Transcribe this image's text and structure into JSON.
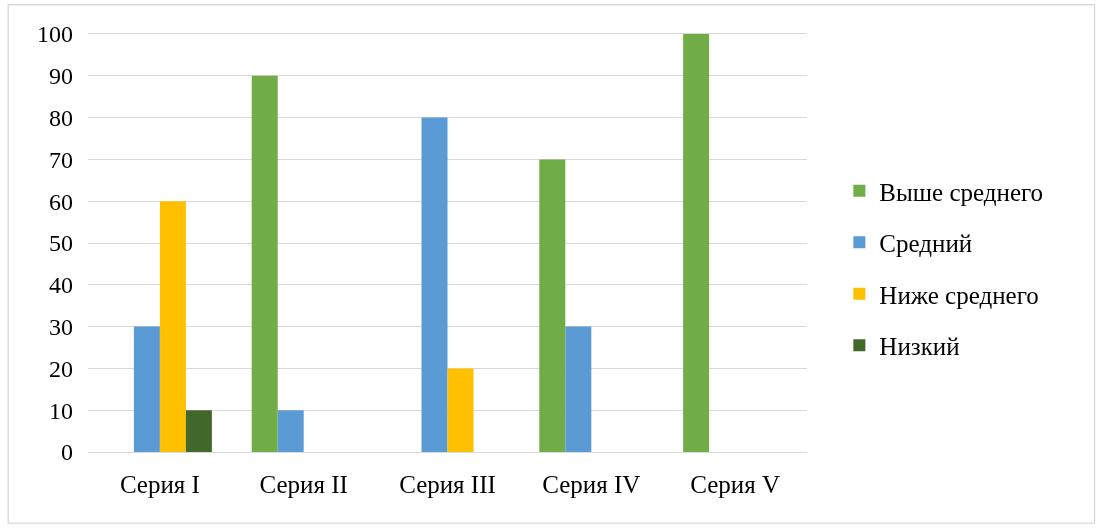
{
  "chart_data": {
    "type": "bar",
    "categories": [
      "Серия I",
      "Серия II",
      "Серия III",
      "Серия IV",
      "Серия V"
    ],
    "series": [
      {
        "name": "Выше среднего",
        "color": "#70ad47",
        "values": [
          0,
          90,
          0,
          70,
          100
        ]
      },
      {
        "name": "Средний",
        "color": "#5b9bd5",
        "values": [
          30,
          10,
          80,
          30,
          0
        ]
      },
      {
        "name": "Ниже среднего",
        "color": "#ffc000",
        "values": [
          60,
          0,
          20,
          0,
          0
        ]
      },
      {
        "name": "Низкий",
        "color": "#43682b",
        "values": [
          10,
          0,
          0,
          0,
          0
        ]
      }
    ],
    "ylim": [
      0,
      100
    ],
    "yticks": [
      0,
      10,
      20,
      30,
      40,
      50,
      60,
      70,
      80,
      90,
      100
    ],
    "grid": "y",
    "legend": "right"
  }
}
